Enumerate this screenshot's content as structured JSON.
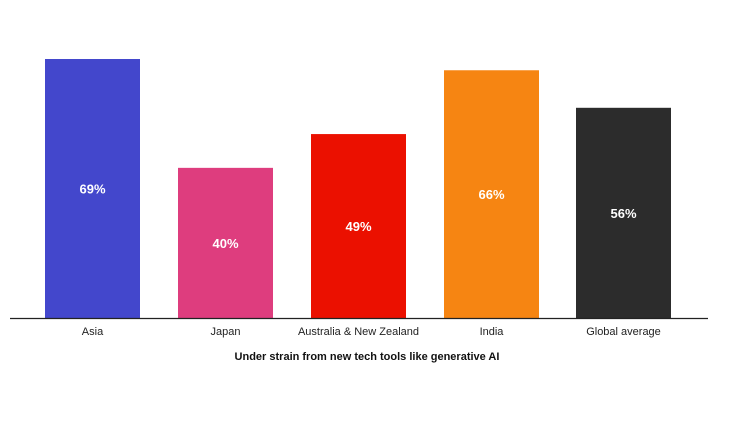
{
  "chart_data": {
    "type": "bar",
    "categories": [
      "Asia",
      "Japan",
      "Australia & New Zealand",
      "India",
      "Global average"
    ],
    "values": [
      69,
      40,
      49,
      66,
      56
    ],
    "data_labels": [
      "69%",
      "40%",
      "49%",
      "66%",
      "56%"
    ],
    "colors": [
      "#4347CC",
      "#DE3D7E",
      "#EB1000",
      "#F68512",
      "#2C2C2C"
    ],
    "title": "",
    "xlabel": "Under strain from new tech tools like generative AI",
    "ylabel": "",
    "ylim": [
      0,
      69
    ],
    "grid": false,
    "legend": "none",
    "axis_color": "#222222"
  }
}
